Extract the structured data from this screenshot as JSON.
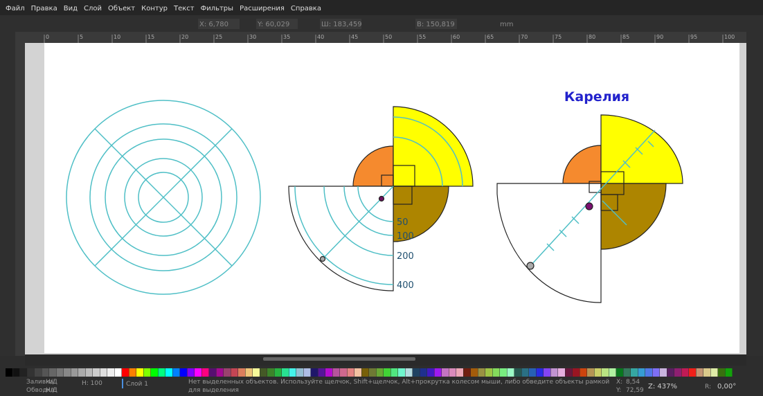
{
  "menu": [
    "Файл",
    "Правка",
    "Вид",
    "Слой",
    "Объект",
    "Контур",
    "Текст",
    "Фильтры",
    "Расширения",
    "Справка"
  ],
  "toolbar": {
    "x": "X: 6,780",
    "y": "Y: 60,029",
    "w": "Ш: 183,459",
    "h": "В: 150,819",
    "unit": "mm"
  },
  "ruler": [
    "0",
    "5",
    "10",
    "15",
    "20",
    "25",
    "30",
    "35",
    "40",
    "45",
    "50",
    "55",
    "60",
    "65",
    "70",
    "75",
    "80",
    "85",
    "90",
    "95",
    "100"
  ],
  "canvas": {
    "title": "Карелия",
    "scale_labels": [
      "50",
      "100",
      "200",
      "400"
    ]
  },
  "status": {
    "fill": "Заливка:",
    "fill_value": "Н/Д",
    "stroke": "Обводка:",
    "stroke_value": "Н/Д",
    "opacity": "Н: 100",
    "layer": "Слой 1",
    "message": "Нет выделенных объектов. Используйте щелчок, Shift+щелчок, Alt+прокрутка колесом мыши, либо обведите объекты рамкой для выделения",
    "cx": "X:",
    "cx_value": "8,54",
    "cy": "Y:",
    "cy_value": "72,59",
    "zoom": "Z: 437%",
    "rotate": "R:",
    "rotate_value": "0,00°"
  }
}
